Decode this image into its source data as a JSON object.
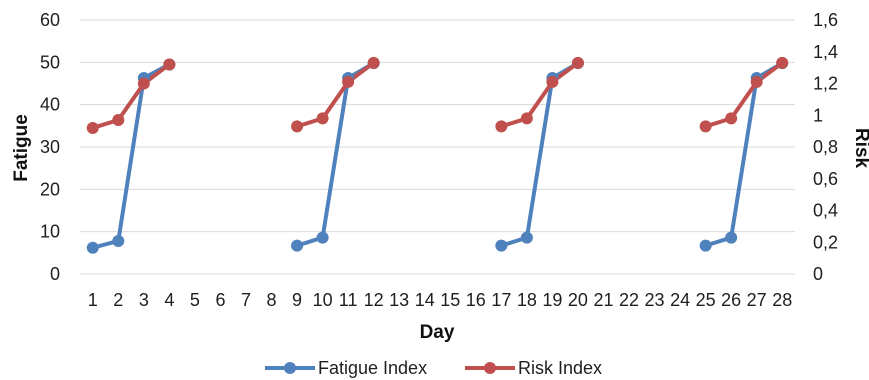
{
  "chart_data": {
    "type": "line",
    "title": "",
    "xlabel": "Day",
    "ylabel": "Fatigue",
    "y2label": "Risk",
    "x": [
      1,
      2,
      3,
      4,
      5,
      6,
      7,
      8,
      9,
      10,
      11,
      12,
      13,
      14,
      15,
      16,
      17,
      18,
      19,
      20,
      21,
      22,
      23,
      24,
      25,
      26,
      27,
      28
    ],
    "ylim": [
      0,
      60
    ],
    "y_ticks": [
      "0",
      "10",
      "20",
      "30",
      "40",
      "50",
      "60"
    ],
    "y2lim": [
      0,
      1.6
    ],
    "y2_ticks": [
      "0",
      "0,2",
      "0,4",
      "0,6",
      "0,8",
      "1",
      "1,2",
      "1,4",
      "1,6"
    ],
    "grid": true,
    "legend_position": "bottom",
    "series": [
      {
        "name": "Fatigue Index",
        "axis": "left",
        "color": "#4f81bd",
        "values": [
          6.2,
          7.8,
          46.3,
          49.5,
          null,
          null,
          null,
          null,
          6.7,
          8.6,
          46.3,
          49.8,
          null,
          null,
          null,
          null,
          6.7,
          8.6,
          46.3,
          49.8,
          null,
          null,
          null,
          null,
          6.7,
          8.6,
          46.3,
          49.8
        ]
      },
      {
        "name": "Risk Index",
        "axis": "right",
        "color": "#c0504d",
        "values": [
          0.92,
          0.97,
          1.2,
          1.32,
          null,
          null,
          null,
          null,
          0.93,
          0.98,
          1.21,
          1.33,
          null,
          null,
          null,
          null,
          0.93,
          0.98,
          1.21,
          1.33,
          null,
          null,
          null,
          null,
          0.93,
          0.98,
          1.21,
          1.33
        ]
      }
    ]
  }
}
